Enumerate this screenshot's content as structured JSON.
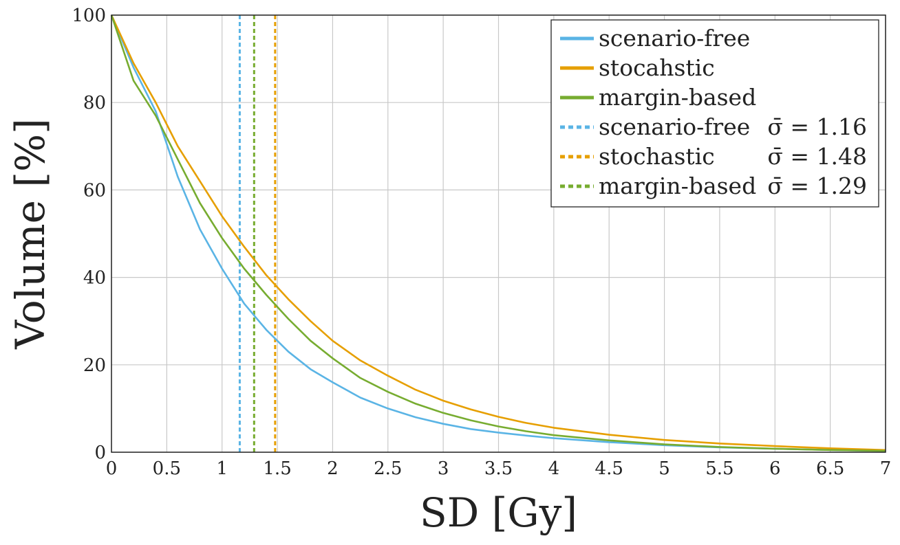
{
  "chart_data": {
    "type": "line",
    "title": "",
    "xlabel": "SD [Gy]",
    "ylabel": "Volume [%]",
    "xlim": [
      0,
      7
    ],
    "ylim": [
      0,
      100
    ],
    "grid": true,
    "legend_position": "top-right",
    "x_ticks": [
      "0",
      "0.5",
      "1",
      "1.5",
      "2",
      "2.5",
      "3",
      "3.5",
      "4",
      "4.5",
      "5",
      "5.5",
      "6",
      "6.5",
      "7"
    ],
    "y_ticks": [
      "0",
      "20",
      "40",
      "60",
      "80",
      "100"
    ],
    "x": [
      0,
      0.2,
      0.4,
      0.6,
      0.8,
      1.0,
      1.2,
      1.4,
      1.6,
      1.8,
      2.0,
      2.25,
      2.5,
      2.75,
      3.0,
      3.25,
      3.5,
      3.75,
      4.0,
      4.5,
      5.0,
      5.5,
      6.0,
      6.5,
      7.0
    ],
    "series": [
      {
        "name": "scenario-free",
        "color": "#5ab4e5",
        "style": "solid",
        "values": [
          100,
          88,
          78,
          63,
          51,
          42,
          34,
          28,
          23,
          19,
          16,
          12.5,
          10,
          8,
          6.5,
          5.3,
          4.5,
          3.8,
          3.2,
          2.3,
          1.6,
          1.1,
          0.8,
          0.5,
          0.3
        ]
      },
      {
        "name": "stocahstic",
        "color": "#e69f00",
        "style": "solid",
        "values": [
          100,
          89,
          80,
          70,
          62,
          54,
          47,
          40.5,
          35,
          30,
          25.5,
          21,
          17.5,
          14.3,
          11.8,
          9.8,
          8.1,
          6.7,
          5.6,
          4.0,
          2.8,
          2.0,
          1.4,
          0.9,
          0.5
        ]
      },
      {
        "name": "margin-based",
        "color": "#77ac30",
        "style": "solid",
        "values": [
          100,
          85,
          77,
          67,
          57,
          49,
          42,
          36,
          30.5,
          25.5,
          21.5,
          17,
          13.8,
          11.1,
          9.0,
          7.3,
          5.9,
          4.8,
          3.9,
          2.7,
          1.8,
          1.2,
          0.8,
          0.5,
          0.3
        ]
      },
      {
        "name": "scenario-free",
        "sigma_label": "σ̄ = 1.16",
        "color": "#5ab4e5",
        "style": "dashed",
        "x_value": 1.16
      },
      {
        "name": "stochastic",
        "sigma_label": "σ̄ = 1.48",
        "color": "#e69f00",
        "style": "dashed",
        "x_value": 1.48
      },
      {
        "name": "margin-based",
        "sigma_label": "σ̄ = 1.29",
        "color": "#77ac30",
        "style": "dashed",
        "x_value": 1.29
      }
    ]
  }
}
